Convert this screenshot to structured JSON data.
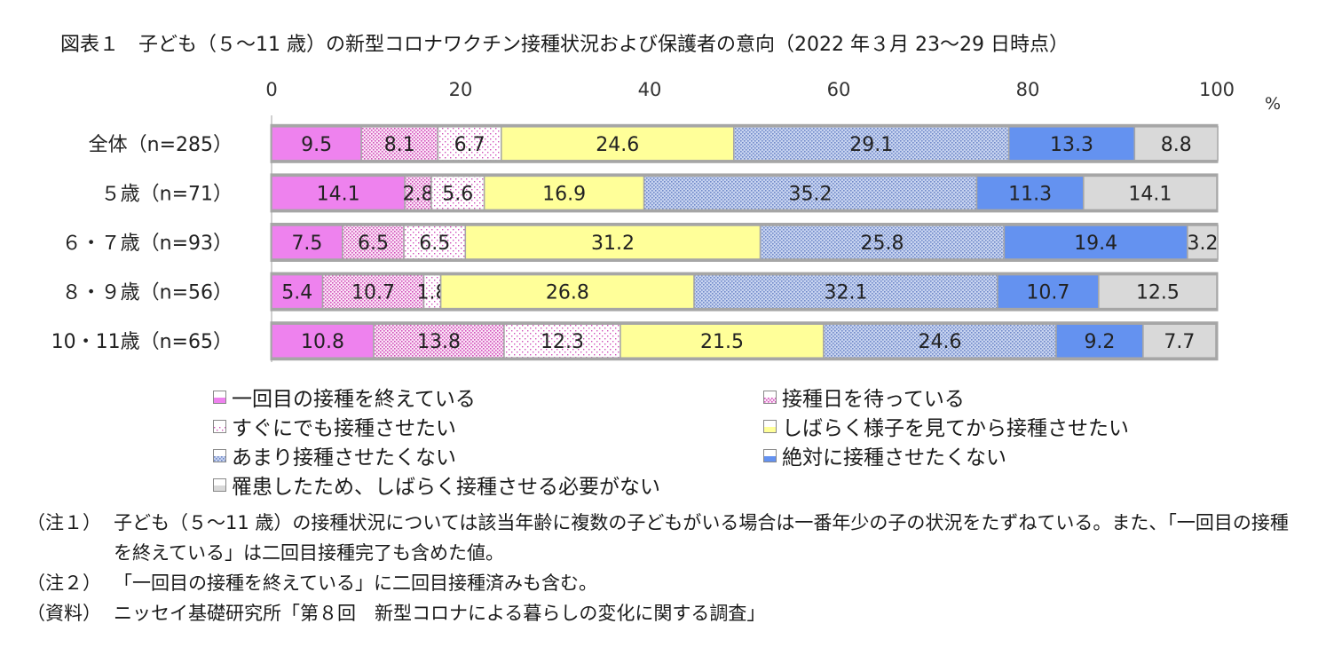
{
  "title": "図表１　子ども（５～11 歳）の新型コロナワクチン接種状況および保護者の意向（2022 年３月 23～29 日時点）",
  "chart_data": {
    "type": "bar",
    "orientation": "horizontal",
    "stacked": true,
    "unit": "%",
    "xlim": [
      0,
      100
    ],
    "x_ticks": [
      0,
      20,
      40,
      60,
      80,
      100
    ],
    "categories": [
      "全体（n=285）",
      "５歳（n=71）",
      "６・７歳（n=93）",
      "８・９歳（n=56）",
      "10・11歳（n=65）"
    ],
    "series": [
      {
        "name": "一回目の接種を終えている",
        "color": "#ee82ee",
        "pattern": "solid",
        "values": [
          9.5,
          14.1,
          7.5,
          5.4,
          10.8
        ]
      },
      {
        "name": "接種日を待っている",
        "color": "#f0a8e8",
        "pattern": "dense-dots",
        "values": [
          8.1,
          2.8,
          6.5,
          10.7,
          13.8
        ]
      },
      {
        "name": "すぐにでも接種させたい",
        "color": "#e070c8",
        "pattern": "sparse-dots",
        "values": [
          6.7,
          5.6,
          6.5,
          1.8,
          12.3
        ]
      },
      {
        "name": "しばらく様子を見てから接種させたい",
        "color": "#ffff99",
        "pattern": "solid",
        "values": [
          24.6,
          16.9,
          31.2,
          26.8,
          21.5
        ]
      },
      {
        "name": "あまり接種させたくない",
        "color": "#9fb0dc",
        "pattern": "dots-blue",
        "values": [
          29.1,
          35.2,
          25.8,
          32.1,
          24.6
        ]
      },
      {
        "name": "絶対に接種させたくない",
        "color": "#6492f0",
        "pattern": "solid",
        "values": [
          13.3,
          11.3,
          19.4,
          10.7,
          9.2
        ]
      },
      {
        "name": "罹患したため、しばらく接種させる必要がない",
        "color": "#d9d9d9",
        "pattern": "solid",
        "values": [
          8.8,
          14.1,
          3.2,
          12.5,
          7.7
        ]
      }
    ]
  },
  "notes": [
    {
      "label": "（注１）",
      "text": "子ども（５～11 歳）の接種状況については該当年齢に複数の子どもがいる場合は一番年少の子の状況をたずねている。また、「一回目の接種を終えている」は二回目接種完了も含めた値。"
    },
    {
      "label": "（注２）",
      "text": "「一回目の接種を終えている」に二回目接種済みも含む。"
    },
    {
      "label": "（資料）",
      "text": "ニッセイ基礎研究所「第８回　新型コロナによる暮らしの変化に関する調査」"
    }
  ]
}
